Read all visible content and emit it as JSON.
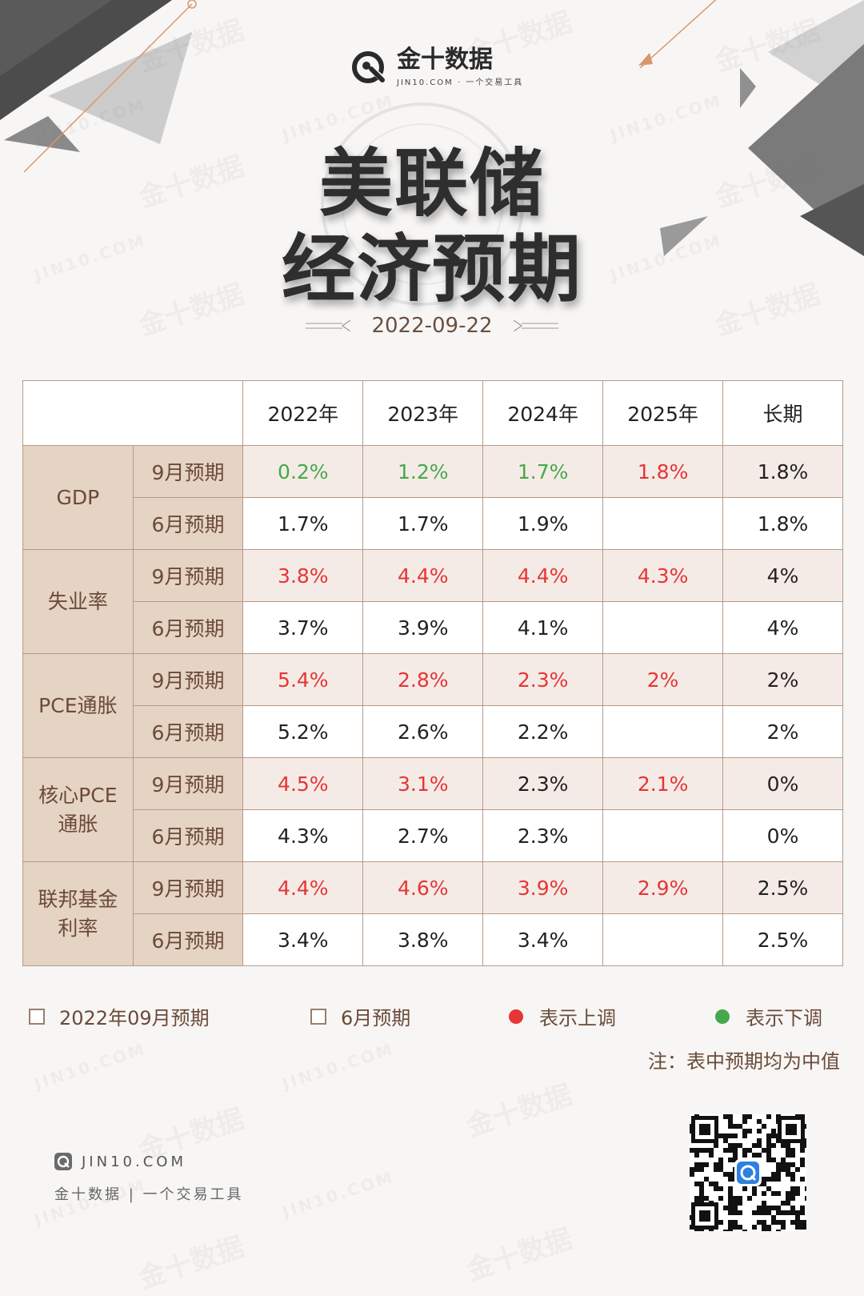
{
  "brand": {
    "name_cn": "金十数据",
    "name_en": "JIN10.COM · 一个交易工具",
    "watermark_cn": "金十数据",
    "watermark_en": "JIN10.COM"
  },
  "title": {
    "line1": "美联储",
    "line2": "经济预期"
  },
  "date": "2022-09-22",
  "table": {
    "columns": [
      "2022年",
      "2023年",
      "2024年",
      "2025年",
      "长期"
    ],
    "groups": [
      {
        "name_lines": [
          "GDP"
        ],
        "rows": [
          {
            "label": "9月预期",
            "cells": [
              {
                "v": "0.2%",
                "s": "down"
              },
              {
                "v": "1.2%",
                "s": "down"
              },
              {
                "v": "1.7%",
                "s": "down"
              },
              {
                "v": "1.8%",
                "s": "up"
              },
              {
                "v": "1.8%",
                "s": "flat"
              }
            ]
          },
          {
            "label": "6月预期",
            "cells": [
              {
                "v": "1.7%",
                "s": "flat"
              },
              {
                "v": "1.7%",
                "s": "flat"
              },
              {
                "v": "1.9%",
                "s": "flat"
              },
              {
                "v": "",
                "s": "flat"
              },
              {
                "v": "1.8%",
                "s": "flat"
              }
            ]
          }
        ]
      },
      {
        "name_lines": [
          "失业率"
        ],
        "rows": [
          {
            "label": "9月预期",
            "cells": [
              {
                "v": "3.8%",
                "s": "up"
              },
              {
                "v": "4.4%",
                "s": "up"
              },
              {
                "v": "4.4%",
                "s": "up"
              },
              {
                "v": "4.3%",
                "s": "up"
              },
              {
                "v": "4%",
                "s": "flat"
              }
            ]
          },
          {
            "label": "6月预期",
            "cells": [
              {
                "v": "3.7%",
                "s": "flat"
              },
              {
                "v": "3.9%",
                "s": "flat"
              },
              {
                "v": "4.1%",
                "s": "flat"
              },
              {
                "v": "",
                "s": "flat"
              },
              {
                "v": "4%",
                "s": "flat"
              }
            ]
          }
        ]
      },
      {
        "name_lines": [
          "PCE通胀"
        ],
        "rows": [
          {
            "label": "9月预期",
            "cells": [
              {
                "v": "5.4%",
                "s": "up"
              },
              {
                "v": "2.8%",
                "s": "up"
              },
              {
                "v": "2.3%",
                "s": "up"
              },
              {
                "v": "2%",
                "s": "up"
              },
              {
                "v": "2%",
                "s": "flat"
              }
            ]
          },
          {
            "label": "6月预期",
            "cells": [
              {
                "v": "5.2%",
                "s": "flat"
              },
              {
                "v": "2.6%",
                "s": "flat"
              },
              {
                "v": "2.2%",
                "s": "flat"
              },
              {
                "v": "",
                "s": "flat"
              },
              {
                "v": "2%",
                "s": "flat"
              }
            ]
          }
        ]
      },
      {
        "name_lines": [
          "核心PCE",
          "通胀"
        ],
        "rows": [
          {
            "label": "9月预期",
            "cells": [
              {
                "v": "4.5%",
                "s": "up"
              },
              {
                "v": "3.1%",
                "s": "up"
              },
              {
                "v": "2.3%",
                "s": "flat"
              },
              {
                "v": "2.1%",
                "s": "up"
              },
              {
                "v": "0%",
                "s": "flat"
              }
            ]
          },
          {
            "label": "6月预期",
            "cells": [
              {
                "v": "4.3%",
                "s": "flat"
              },
              {
                "v": "2.7%",
                "s": "flat"
              },
              {
                "v": "2.3%",
                "s": "flat"
              },
              {
                "v": "",
                "s": "flat"
              },
              {
                "v": "0%",
                "s": "flat"
              }
            ]
          }
        ]
      },
      {
        "name_lines": [
          "联邦基金",
          "利率"
        ],
        "rows": [
          {
            "label": "9月预期",
            "cells": [
              {
                "v": "4.4%",
                "s": "up"
              },
              {
                "v": "4.6%",
                "s": "up"
              },
              {
                "v": "3.9%",
                "s": "up"
              },
              {
                "v": "2.9%",
                "s": "up"
              },
              {
                "v": "2.5%",
                "s": "flat"
              }
            ]
          },
          {
            "label": "6月预期",
            "cells": [
              {
                "v": "3.4%",
                "s": "flat"
              },
              {
                "v": "3.8%",
                "s": "flat"
              },
              {
                "v": "3.4%",
                "s": "flat"
              },
              {
                "v": "",
                "s": "flat"
              },
              {
                "v": "2.5%",
                "s": "flat"
              }
            ]
          }
        ]
      }
    ]
  },
  "legend": {
    "sep_label": "2022年09月预期",
    "jun_label": "6月预期",
    "up_label": "表示上调",
    "down_label": "表示下调",
    "up_color": "#e63535",
    "down_color": "#46a84c"
  },
  "note": "注：表中预期均为中值",
  "footer": {
    "site": "JIN10.COM",
    "tagline": "金十数据 | 一个交易工具"
  }
}
